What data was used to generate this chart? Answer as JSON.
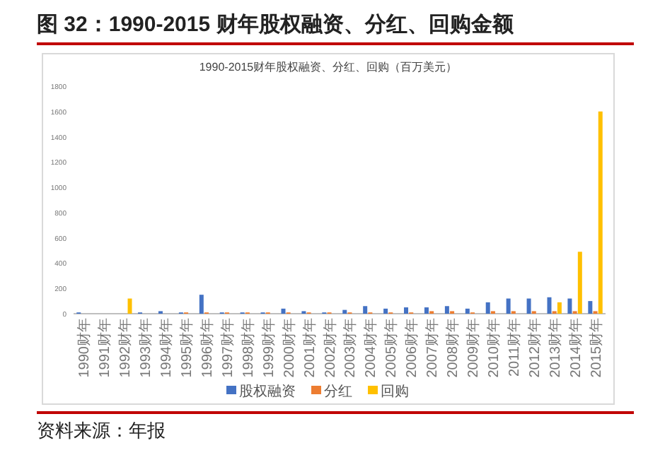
{
  "chart_data": {
    "type": "bar",
    "title": "1990-2015财年股权融资、分红、回购（百万美元）",
    "subtitle": "图 32：1990-2015 财年股权融资、分红、回购金额",
    "annotations": [
      "资料来源：年报"
    ],
    "categories": [
      "1990财年",
      "1991财年",
      "1992财年",
      "1993财年",
      "1994财年",
      "1995财年",
      "1996财年",
      "1997财年",
      "1998财年",
      "1999财年",
      "2000财年",
      "2001财年",
      "2002财年",
      "2003财年",
      "2004财年",
      "2005财年",
      "2006财年",
      "2007财年",
      "2008财年",
      "2009财年",
      "2010财年",
      "2011财年",
      "2012财年",
      "2013财年",
      "2014财年",
      "2015财年"
    ],
    "series": [
      {
        "name": "股权融资",
        "color": "#4472c4",
        "values": [
          10,
          null,
          null,
          10,
          20,
          10,
          150,
          10,
          10,
          10,
          40,
          20,
          10,
          30,
          60,
          40,
          50,
          50,
          60,
          40,
          90,
          120,
          120,
          130,
          120,
          100
        ]
      },
      {
        "name": "分红",
        "color": "#ed7d31",
        "values": [
          null,
          null,
          null,
          null,
          null,
          10,
          10,
          10,
          10,
          10,
          10,
          10,
          10,
          10,
          10,
          10,
          10,
          20,
          20,
          10,
          20,
          20,
          20,
          20,
          20,
          20
        ]
      },
      {
        "name": "回购",
        "color": "#ffc000",
        "values": [
          null,
          null,
          120,
          null,
          null,
          null,
          null,
          null,
          null,
          null,
          null,
          null,
          null,
          null,
          null,
          null,
          null,
          null,
          null,
          null,
          null,
          null,
          null,
          90,
          490,
          1600
        ]
      }
    ],
    "ylim": [
      0,
      1800
    ],
    "yticks": [
      0,
      200,
      400,
      600,
      800,
      1000,
      1200,
      1400,
      1600,
      1800
    ],
    "grid": false,
    "legend": "bottom"
  }
}
